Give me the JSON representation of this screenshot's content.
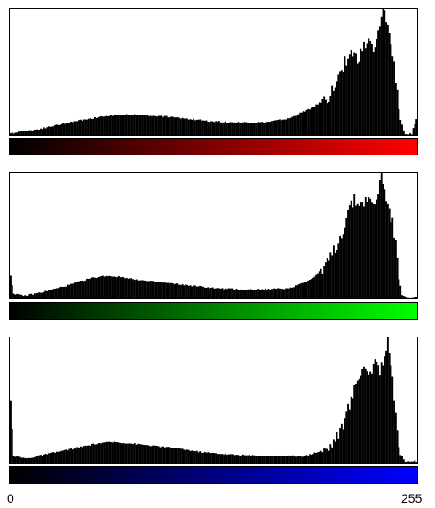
{
  "chart_data": [
    {
      "type": "area",
      "channel": "red",
      "color": "#ff0000",
      "gradient": [
        "#000000",
        "#ff0000"
      ],
      "xlim": [
        0,
        255
      ],
      "ylim": [
        0,
        100
      ],
      "points": [
        [
          0,
          1
        ],
        [
          6,
          3
        ],
        [
          15,
          4
        ],
        [
          30,
          8
        ],
        [
          45,
          12
        ],
        [
          60,
          15
        ],
        [
          70,
          16
        ],
        [
          80,
          16
        ],
        [
          95,
          15
        ],
        [
          110,
          13
        ],
        [
          125,
          11
        ],
        [
          140,
          10
        ],
        [
          160,
          10
        ],
        [
          175,
          13
        ],
        [
          190,
          22
        ],
        [
          200,
          30
        ],
        [
          205,
          42
        ],
        [
          210,
          58
        ],
        [
          214,
          66
        ],
        [
          218,
          60
        ],
        [
          222,
          70
        ],
        [
          226,
          76
        ],
        [
          228,
          62
        ],
        [
          231,
          80
        ],
        [
          233,
          92
        ],
        [
          235,
          100
        ],
        [
          237,
          86
        ],
        [
          239,
          72
        ],
        [
          241,
          55
        ],
        [
          243,
          35
        ],
        [
          245,
          12
        ],
        [
          248,
          0
        ],
        [
          252,
          1
        ],
        [
          255,
          13
        ]
      ]
    },
    {
      "type": "area",
      "channel": "green",
      "color": "#00ff00",
      "gradient": [
        "#000000",
        "#00ff00"
      ],
      "xlim": [
        0,
        255
      ],
      "ylim": [
        0,
        100
      ],
      "points": [
        [
          0,
          18
        ],
        [
          2,
          4
        ],
        [
          8,
          2
        ],
        [
          20,
          5
        ],
        [
          35,
          10
        ],
        [
          50,
          16
        ],
        [
          60,
          18
        ],
        [
          70,
          17
        ],
        [
          85,
          14
        ],
        [
          100,
          12
        ],
        [
          115,
          10
        ],
        [
          130,
          8
        ],
        [
          150,
          7
        ],
        [
          175,
          8
        ],
        [
          190,
          16
        ],
        [
          200,
          30
        ],
        [
          208,
          50
        ],
        [
          212,
          70
        ],
        [
          216,
          78
        ],
        [
          220,
          75
        ],
        [
          224,
          80
        ],
        [
          228,
          73
        ],
        [
          231,
          84
        ],
        [
          233,
          100
        ],
        [
          235,
          88
        ],
        [
          237,
          74
        ],
        [
          240,
          60
        ],
        [
          242,
          42
        ],
        [
          244,
          18
        ],
        [
          246,
          3
        ],
        [
          250,
          1
        ],
        [
          255,
          1
        ]
      ]
    },
    {
      "type": "area",
      "channel": "blue",
      "color": "#0000ff",
      "gradient": [
        "#000000",
        "#0000ff"
      ],
      "xlim": [
        0,
        255
      ],
      "ylim": [
        0,
        100
      ],
      "points": [
        [
          0,
          50
        ],
        [
          2,
          6
        ],
        [
          10,
          4
        ],
        [
          25,
          8
        ],
        [
          40,
          12
        ],
        [
          55,
          16
        ],
        [
          65,
          17
        ],
        [
          75,
          16
        ],
        [
          90,
          14
        ],
        [
          105,
          12
        ],
        [
          120,
          9
        ],
        [
          140,
          7
        ],
        [
          160,
          6
        ],
        [
          185,
          6
        ],
        [
          200,
          12
        ],
        [
          208,
          28
        ],
        [
          214,
          50
        ],
        [
          218,
          68
        ],
        [
          222,
          77
        ],
        [
          226,
          72
        ],
        [
          230,
          80
        ],
        [
          232,
          74
        ],
        [
          235,
          86
        ],
        [
          237,
          100
        ],
        [
          239,
          80
        ],
        [
          241,
          55
        ],
        [
          243,
          25
        ],
        [
          245,
          7
        ],
        [
          248,
          2
        ],
        [
          255,
          2
        ]
      ]
    }
  ],
  "axis": {
    "min_label": "0",
    "max_label": "255"
  }
}
